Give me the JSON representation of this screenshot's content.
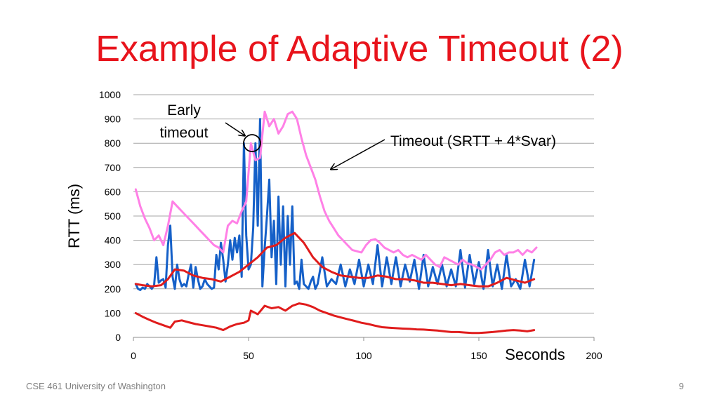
{
  "slide": {
    "title": "Example of Adaptive Timeout (2)",
    "footer": "CSE 461 University of Washington",
    "page_number": "9"
  },
  "chart_data": {
    "type": "line",
    "title": "",
    "xlabel": "Seconds",
    "ylabel": "RTT (ms)",
    "xlim": [
      0,
      200
    ],
    "ylim": [
      0,
      1000
    ],
    "x_ticks": [
      0,
      50,
      100,
      150,
      200
    ],
    "y_ticks": [
      0,
      100,
      200,
      300,
      400,
      500,
      600,
      700,
      800,
      900,
      1000
    ],
    "grid": "horizontal",
    "annotations": [
      {
        "text_lines": [
          "Early",
          "timeout"
        ],
        "points_to": {
          "x": 51,
          "y": 810
        }
      },
      {
        "text": "Timeout (SRTT + 4*Svar)",
        "points_to": {
          "x": 85,
          "y": 690
        }
      }
    ],
    "series": [
      {
        "color": "#1560c8",
        "x": [
          1,
          2,
          3,
          4,
          5,
          6,
          7,
          8,
          9,
          10,
          11,
          12,
          13,
          14,
          15,
          16,
          17,
          18,
          19,
          20,
          21,
          22,
          23,
          24,
          25,
          26,
          27,
          28,
          29,
          30,
          31,
          32,
          33,
          34,
          35,
          36,
          37,
          38,
          39,
          40,
          41,
          42,
          43,
          44,
          45,
          46,
          47,
          48,
          49,
          50,
          51,
          52,
          53,
          54,
          55,
          56,
          57,
          58,
          59,
          60,
          61,
          62,
          63,
          64,
          65,
          66,
          67,
          68,
          69,
          70,
          71,
          72,
          73,
          74,
          75,
          76,
          77,
          78,
          79,
          80,
          82,
          84,
          86,
          88,
          90,
          92,
          94,
          96,
          98,
          100,
          102,
          104,
          106,
          108,
          110,
          112,
          114,
          116,
          118,
          120,
          122,
          124,
          126,
          128,
          130,
          132,
          134,
          136,
          138,
          140,
          142,
          144,
          146,
          148,
          150,
          152,
          154,
          156,
          158,
          160,
          162,
          164,
          166,
          168,
          170,
          172,
          174
        ],
        "values": [
          220,
          200,
          195,
          205,
          200,
          220,
          210,
          200,
          215,
          330,
          225,
          235,
          240,
          205,
          380,
          460,
          250,
          200,
          300,
          240,
          210,
          220,
          210,
          260,
          300,
          205,
          290,
          240,
          200,
          210,
          240,
          220,
          210,
          200,
          205,
          340,
          280,
          390,
          320,
          230,
          300,
          400,
          320,
          410,
          350,
          420,
          250,
          800,
          420,
          280,
          300,
          450,
          800,
          460,
          900,
          210,
          370,
          500,
          650,
          330,
          480,
          220,
          580,
          300,
          540,
          210,
          500,
          300,
          540,
          220,
          230,
          200,
          320,
          220,
          210,
          200,
          230,
          250,
          200,
          220,
          330,
          210,
          240,
          220,
          300,
          210,
          280,
          220,
          320,
          210,
          300,
          220,
          380,
          210,
          330,
          220,
          330,
          210,
          300,
          230,
          320,
          200,
          340,
          210,
          290,
          220,
          300,
          210,
          280,
          210,
          360,
          205,
          340,
          220,
          310,
          200,
          360,
          210,
          300,
          200,
          340,
          210,
          240,
          200,
          320,
          210,
          320
        ]
      },
      {
        "color": "#ff80e6",
        "x": [
          1,
          3,
          5,
          7,
          9,
          11,
          13,
          15,
          17,
          19,
          21,
          23,
          25,
          27,
          29,
          31,
          33,
          35,
          37,
          39,
          41,
          43,
          45,
          47,
          49,
          51,
          53,
          55,
          57,
          59,
          61,
          63,
          65,
          67,
          69,
          71,
          73,
          75,
          77,
          79,
          81,
          83,
          85,
          87,
          89,
          91,
          93,
          95,
          97,
          99,
          101,
          103,
          105,
          107,
          109,
          111,
          113,
          115,
          117,
          119,
          121,
          123,
          125,
          127,
          129,
          131,
          133,
          135,
          137,
          139,
          141,
          143,
          145,
          147,
          149,
          151,
          153,
          155,
          157,
          159,
          161,
          163,
          165,
          167,
          169,
          171,
          173,
          175
        ],
        "values": [
          610,
          540,
          490,
          450,
          400,
          420,
          380,
          460,
          560,
          540,
          520,
          500,
          480,
          460,
          440,
          420,
          400,
          380,
          370,
          350,
          460,
          480,
          470,
          520,
          560,
          800,
          730,
          740,
          930,
          870,
          900,
          840,
          870,
          920,
          930,
          900,
          820,
          750,
          700,
          650,
          580,
          520,
          480,
          450,
          420,
          400,
          380,
          360,
          355,
          350,
          380,
          400,
          405,
          390,
          370,
          360,
          350,
          360,
          340,
          330,
          340,
          330,
          320,
          340,
          320,
          300,
          290,
          330,
          320,
          310,
          300,
          320,
          305,
          300,
          290,
          280,
          300,
          320,
          350,
          360,
          340,
          350,
          350,
          360,
          340,
          360,
          350,
          370
        ]
      },
      {
        "color": "#e01c1c",
        "x": [
          1,
          4,
          8,
          12,
          15,
          18,
          22,
          26,
          30,
          34,
          38,
          42,
          46,
          50,
          54,
          58,
          62,
          66,
          70,
          74,
          78,
          82,
          86,
          90,
          94,
          98,
          102,
          106,
          110,
          114,
          118,
          122,
          126,
          130,
          134,
          138,
          142,
          146,
          150,
          154,
          158,
          162,
          166,
          170,
          174
        ],
        "values": [
          220,
          215,
          210,
          215,
          240,
          280,
          275,
          255,
          245,
          240,
          230,
          250,
          270,
          300,
          330,
          370,
          380,
          410,
          430,
          390,
          330,
          290,
          270,
          255,
          250,
          245,
          245,
          255,
          250,
          240,
          240,
          235,
          225,
          225,
          220,
          215,
          220,
          215,
          210,
          210,
          225,
          245,
          235,
          225,
          240
        ]
      },
      {
        "color": "#e01c1c",
        "x": [
          1,
          4,
          7,
          10,
          13,
          16,
          18,
          21,
          24,
          27,
          30,
          33,
          36,
          39,
          42,
          45,
          48,
          50,
          51,
          54,
          57,
          60,
          63,
          66,
          69,
          72,
          75,
          78,
          81,
          84,
          87,
          90,
          93,
          96,
          99,
          102,
          105,
          108,
          111,
          114,
          117,
          120,
          123,
          126,
          129,
          132,
          135,
          138,
          141,
          144,
          147,
          150,
          153,
          156,
          159,
          162,
          165,
          168,
          171,
          174
        ],
        "values": [
          100,
          85,
          72,
          60,
          50,
          40,
          65,
          70,
          62,
          55,
          50,
          45,
          40,
          30,
          45,
          55,
          60,
          70,
          110,
          95,
          130,
          120,
          125,
          110,
          130,
          140,
          135,
          125,
          110,
          100,
          90,
          82,
          75,
          68,
          60,
          55,
          48,
          42,
          40,
          38,
          36,
          35,
          33,
          32,
          30,
          28,
          25,
          22,
          22,
          20,
          18,
          18,
          20,
          22,
          25,
          28,
          30,
          28,
          25,
          30
        ]
      }
    ]
  }
}
